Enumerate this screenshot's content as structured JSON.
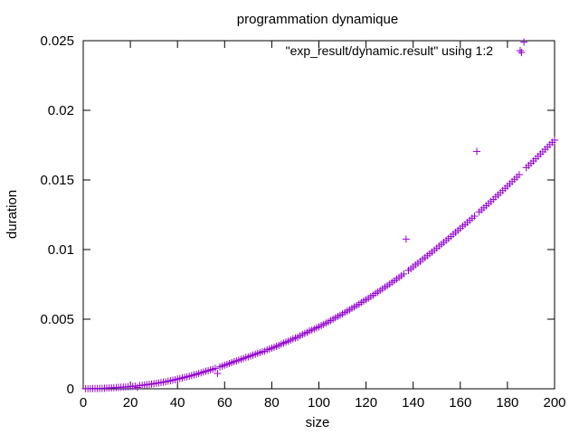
{
  "chart_data": {
    "type": "scatter",
    "title": "programmation dynamique",
    "xlabel": "size",
    "ylabel": "duration",
    "xlim": [
      0,
      200
    ],
    "ylim": [
      0,
      0.025
    ],
    "xticks": [
      "0",
      "20",
      "40",
      "60",
      "80",
      "100",
      "120",
      "140",
      "160",
      "180",
      "200"
    ],
    "yticks": [
      "0",
      "0.005",
      "0.01",
      "0.015",
      "0.02",
      "0.025"
    ],
    "grid": false,
    "legend": "top-right",
    "marker": "plus",
    "series": [
      {
        "name": "\"exp_result/dynamic.result\" using 1:2",
        "color": "#9400d3",
        "points": [
          [
            1,
            1e-05
          ],
          [
            2,
            1e-05
          ],
          [
            3,
            1e-05
          ],
          [
            4,
            2e-05
          ],
          [
            5,
            2e-05
          ],
          [
            6,
            2e-05
          ],
          [
            7,
            3e-05
          ],
          [
            8,
            3e-05
          ],
          [
            9,
            4e-05
          ],
          [
            10,
            5e-05
          ],
          [
            11,
            6e-05
          ],
          [
            12,
            7e-05
          ],
          [
            13,
            8e-05
          ],
          [
            14,
            9e-05
          ],
          [
            15,
            0.0001
          ],
          [
            16,
            0.00011
          ],
          [
            17,
            0.00012
          ],
          [
            18,
            0.00013
          ],
          [
            19,
            0.00015
          ],
          [
            20,
            0.00016
          ],
          [
            21,
            0.00018
          ],
          [
            22,
            0.0002
          ],
          [
            23,
            0.0001
          ],
          [
            24,
            0.00023
          ],
          [
            25,
            0.00025
          ],
          [
            26,
            0.00027
          ],
          [
            27,
            0.0003
          ],
          [
            28,
            0.00032
          ],
          [
            29,
            0.00034
          ],
          [
            30,
            0.00037
          ],
          [
            31,
            0.0004
          ],
          [
            32,
            0.00042
          ],
          [
            33,
            0.00045
          ],
          [
            34,
            0.00048
          ],
          [
            35,
            0.0005
          ],
          [
            36,
            0.00055
          ],
          [
            37,
            0.00058
          ],
          [
            38,
            0.00062
          ],
          [
            39,
            0.00065
          ],
          [
            40,
            0.0007
          ],
          [
            41,
            0.00073
          ],
          [
            42,
            0.00078
          ],
          [
            43,
            0.00082
          ],
          [
            44,
            0.00086
          ],
          [
            45,
            0.0009
          ],
          [
            46,
            0.00095
          ],
          [
            47,
            0.001
          ],
          [
            48,
            0.00104
          ],
          [
            49,
            0.0011
          ],
          [
            50,
            0.00115
          ],
          [
            51,
            0.0012
          ],
          [
            52,
            0.00126
          ],
          [
            53,
            0.0013
          ],
          [
            54,
            0.00136
          ],
          [
            55,
            0.0014
          ],
          [
            56,
            0.00147
          ],
          [
            57,
            0.0011
          ],
          [
            58,
            0.00157
          ],
          [
            59,
            0.00163
          ],
          [
            60,
            0.0017
          ],
          [
            61,
            0.00175
          ],
          [
            62,
            0.00182
          ],
          [
            63,
            0.00188
          ],
          [
            64,
            0.00195
          ],
          [
            65,
            0.002
          ],
          [
            66,
            0.00206
          ],
          [
            67,
            0.00212
          ],
          [
            68,
            0.00218
          ],
          [
            69,
            0.00225
          ],
          [
            70,
            0.0023
          ],
          [
            71,
            0.00236
          ],
          [
            72,
            0.00242
          ],
          [
            73,
            0.00248
          ],
          [
            74,
            0.00255
          ],
          [
            75,
            0.0026
          ],
          [
            76,
            0.00266
          ],
          [
            77,
            0.0027
          ],
          [
            78,
            0.0028
          ],
          [
            79,
            0.00285
          ],
          [
            80,
            0.00292
          ],
          [
            81,
            0.00298
          ],
          [
            82,
            0.00305
          ],
          [
            83,
            0.00312
          ],
          [
            84,
            0.0032
          ],
          [
            85,
            0.00328
          ],
          [
            86,
            0.00335
          ],
          [
            87,
            0.00342
          ],
          [
            88,
            0.0035
          ],
          [
            89,
            0.00358
          ],
          [
            90,
            0.00365
          ],
          [
            91,
            0.0037
          ],
          [
            92,
            0.0038
          ],
          [
            93,
            0.0039
          ],
          [
            94,
            0.00398
          ],
          [
            95,
            0.00405
          ],
          [
            96,
            0.00415
          ],
          [
            97,
            0.00422
          ],
          [
            98,
            0.0043
          ],
          [
            99,
            0.00438
          ],
          [
            100,
            0.00445
          ],
          [
            101,
            0.00455
          ],
          [
            102,
            0.00462
          ],
          [
            103,
            0.00472
          ],
          [
            104,
            0.0048
          ],
          [
            105,
            0.0049
          ],
          [
            106,
            0.005
          ],
          [
            107,
            0.0051
          ],
          [
            108,
            0.0052
          ],
          [
            109,
            0.00528
          ],
          [
            110,
            0.00538
          ],
          [
            111,
            0.00548
          ],
          [
            112,
            0.00558
          ],
          [
            113,
            0.00567
          ],
          [
            114,
            0.00578
          ],
          [
            115,
            0.00588
          ],
          [
            116,
            0.00598
          ],
          [
            117,
            0.00608
          ],
          [
            118,
            0.0062
          ],
          [
            119,
            0.0063
          ],
          [
            120,
            0.0064
          ],
          [
            121,
            0.0065
          ],
          [
            122,
            0.00662
          ],
          [
            123,
            0.00672
          ],
          [
            124,
            0.00685
          ],
          [
            125,
            0.00695
          ],
          [
            126,
            0.00706
          ],
          [
            127,
            0.00718
          ],
          [
            128,
            0.0073
          ],
          [
            129,
            0.0074
          ],
          [
            130,
            0.00752
          ],
          [
            131,
            0.00765
          ],
          [
            132,
            0.00776
          ],
          [
            133,
            0.00788
          ],
          [
            134,
            0.008
          ],
          [
            135,
            0.00812
          ],
          [
            136,
            0.00825
          ],
          [
            137,
            0.01075
          ],
          [
            138,
            0.0085
          ],
          [
            139,
            0.00862
          ],
          [
            140,
            0.00876
          ],
          [
            141,
            0.0089
          ],
          [
            142,
            0.00902
          ],
          [
            143,
            0.00915
          ],
          [
            144,
            0.0093
          ],
          [
            145,
            0.00942
          ],
          [
            146,
            0.00956
          ],
          [
            147,
            0.0097
          ],
          [
            148,
            0.00982
          ],
          [
            149,
            0.00996
          ],
          [
            150,
            0.0101
          ],
          [
            151,
            0.01025
          ],
          [
            152,
            0.01038
          ],
          [
            153,
            0.01052
          ],
          [
            154,
            0.01066
          ],
          [
            155,
            0.0108
          ],
          [
            156,
            0.01094
          ],
          [
            157,
            0.0111
          ],
          [
            158,
            0.01124
          ],
          [
            159,
            0.01138
          ],
          [
            160,
            0.01152
          ],
          [
            161,
            0.01168
          ],
          [
            162,
            0.0118
          ],
          [
            163,
            0.01195
          ],
          [
            164,
            0.0121
          ],
          [
            165,
            0.01225
          ],
          [
            166,
            0.0124
          ],
          [
            167,
            0.01705
          ],
          [
            168,
            0.0127
          ],
          [
            169,
            0.01285
          ],
          [
            170,
            0.013
          ],
          [
            171,
            0.01315
          ],
          [
            172,
            0.0133
          ],
          [
            173,
            0.01345
          ],
          [
            174,
            0.0136
          ],
          [
            175,
            0.01378
          ],
          [
            176,
            0.01392
          ],
          [
            177,
            0.01408
          ],
          [
            178,
            0.01424
          ],
          [
            179,
            0.0144
          ],
          [
            180,
            0.01456
          ],
          [
            181,
            0.01472
          ],
          [
            182,
            0.01488
          ],
          [
            183,
            0.01505
          ],
          [
            184,
            0.0152
          ],
          [
            185,
            0.01538
          ],
          [
            186,
            0.02415
          ],
          [
            187,
            0.0249
          ],
          [
            188,
            0.01588
          ],
          [
            189,
            0.01604
          ],
          [
            190,
            0.0162
          ],
          [
            191,
            0.01636
          ],
          [
            192,
            0.01652
          ],
          [
            193,
            0.0167
          ],
          [
            194,
            0.01686
          ],
          [
            195,
            0.01702
          ],
          [
            196,
            0.0172
          ],
          [
            197,
            0.01736
          ],
          [
            198,
            0.01754
          ],
          [
            199,
            0.0177
          ],
          [
            200,
            0.01786
          ]
        ]
      }
    ]
  }
}
